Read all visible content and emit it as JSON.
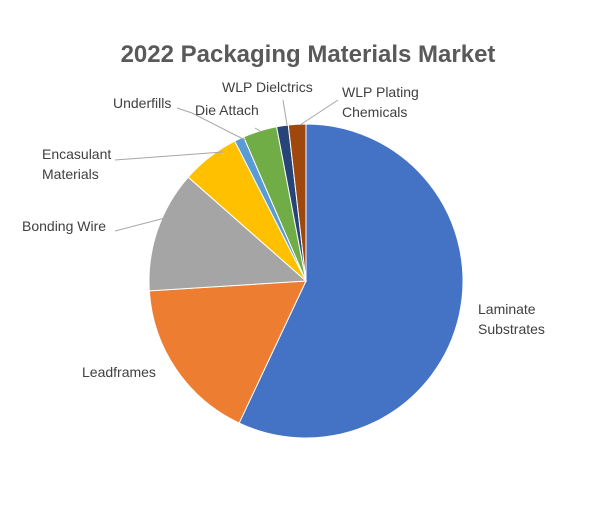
{
  "chart_data": {
    "type": "pie",
    "title": "2022 Packaging Materials Market",
    "slices": [
      {
        "label": "Laminate Substrates",
        "label_lines": [
          "Laminate",
          "Substrates"
        ],
        "value": 57.0,
        "color": "#4472C4"
      },
      {
        "label": "Leadframes",
        "label_lines": [
          "Leadframes"
        ],
        "value": 17.0,
        "color": "#ED7D31"
      },
      {
        "label": "Bonding Wire",
        "label_lines": [
          "Bonding Wire"
        ],
        "value": 12.5,
        "color": "#A5A5A5"
      },
      {
        "label": "Encasulant Materials",
        "label_lines": [
          "Encasulant",
          "Materials"
        ],
        "value": 6.0,
        "color": "#FFC000"
      },
      {
        "label": "Underfills",
        "label_lines": [
          "Underfills"
        ],
        "value": 1.0,
        "color": "#5B9BD5"
      },
      {
        "label": "Die Attach",
        "label_lines": [
          "Die Attach"
        ],
        "value": 3.5,
        "color": "#70AD47"
      },
      {
        "label": "WLP Dielctrics",
        "label_lines": [
          "WLP Dielctrics"
        ],
        "value": 1.2,
        "color": "#264478"
      },
      {
        "label": "WLP Plating Chemicals",
        "label_lines": [
          "WLP Plating",
          "Chemicals"
        ],
        "value": 1.8,
        "color": "#9E480E"
      }
    ],
    "legend": "none",
    "labels": "outside-with-leader-lines"
  }
}
